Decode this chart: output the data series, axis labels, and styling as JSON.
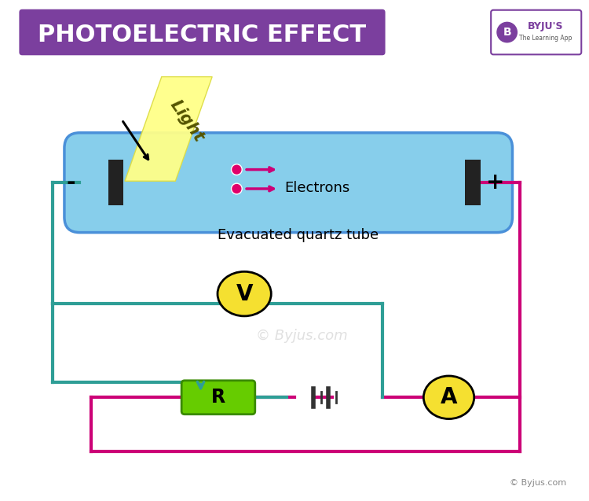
{
  "title": "PHOTOELECTRIC EFFECT",
  "title_bg": "#7B3F9E",
  "title_color": "#FFFFFF",
  "bg_color": "#FFFFFF",
  "tube_color": "#87CEEB",
  "tube_border": "#4A90D9",
  "electrode_color": "#222222",
  "wire_teal": "#2E9E96",
  "wire_pink": "#CC0077",
  "electron_color": "#E0006A",
  "arrow_electron": "#CC0077",
  "voltmeter_color": "#F5E030",
  "ammeter_color": "#F5E030",
  "resistor_color": "#66CC00",
  "resistor_border": "#3A8A00",
  "light_color": "#FFFF88",
  "light_label": "Light",
  "electrons_label": "Electrons",
  "tube_label": "Evacuated quartz tube",
  "minus_label": "-",
  "plus_label": "+",
  "V_label": "V",
  "A_label": "A",
  "R_label": "R",
  "watermark": "© Byjus.com",
  "copyright": "© Byjus.com",
  "byjus_text": "BYJU'S",
  "byjus_sub": "The Learning App"
}
